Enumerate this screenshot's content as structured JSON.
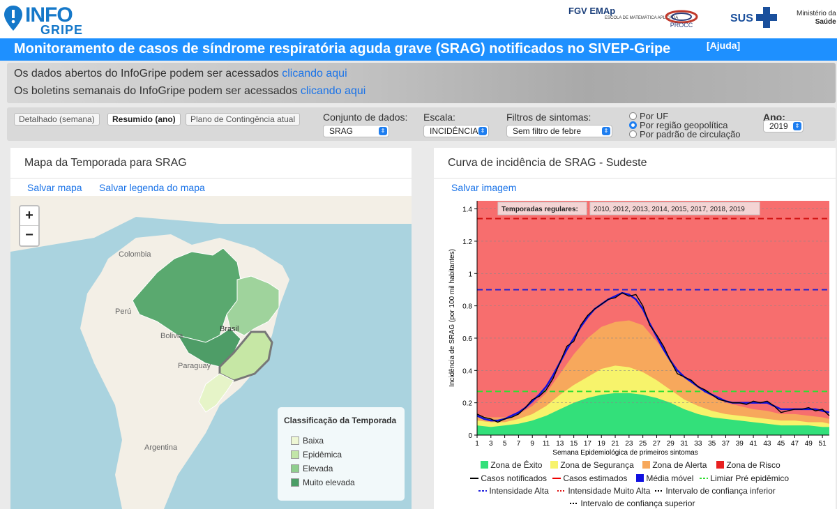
{
  "header": {
    "logo_line1": "INFO",
    "logo_line2": "GRIPE",
    "fgv_label": "FGV EMAp",
    "fgv_sub": "ESCOLA DE MATEMÁTICA APLICADA",
    "procc_label": "PROCC",
    "sus_label": "SUS",
    "ministry_line1": "Ministério da",
    "ministry_line2": "Saúde"
  },
  "title": {
    "text": "Monitoramento de casos de síndrome respiratória aguda grave (SRAG) notificados no SIVEP-Gripe",
    "help_link": "[Ajuda]"
  },
  "info": {
    "line1_prefix": "Os dados abertos do InfoGripe podem ser acessados ",
    "line1_link": "clicando aqui",
    "line2_prefix": "Os boletins semanais do InfoGripe podem ser acessados ",
    "line2_link": "clicando aqui"
  },
  "controls": {
    "tabs": [
      "Detalhado (semana)",
      "Resumido (ano)",
      "Plano de Contingência atual"
    ],
    "dataset_label": "Conjunto de dados:",
    "dataset_value": "SRAG",
    "scale_label": "Escala:",
    "scale_value": "INCIDÊNCIA",
    "filter_label": "Filtros de sintomas:",
    "filter_value": "Sem filtro de febre",
    "radio_options": [
      "Por UF",
      "Por região geopolítica",
      "Por padrão de circulação"
    ],
    "radio_selected": 1,
    "year_label": "Ano:",
    "year_value": "2019"
  },
  "map_panel": {
    "title": "Mapa da Temporada para SRAG",
    "save_map": "Salvar mapa",
    "save_legend": "Salvar legenda do mapa",
    "zoom_in": "+",
    "zoom_out": "−",
    "labels": [
      "Colombia",
      "Perú",
      "Bolivia",
      "Paraguay",
      "Argentina",
      "Brasil"
    ],
    "legend_title": "Classificação da Temporada",
    "legend_items": [
      {
        "label": "Baixa",
        "color": "#eef7d4"
      },
      {
        "label": "Epidêmica",
        "color": "#c2e6a8"
      },
      {
        "label": "Elevada",
        "color": "#8fce8e"
      },
      {
        "label": "Muito elevada",
        "color": "#4a9e66"
      }
    ]
  },
  "chart_panel": {
    "title": "Curva de incidência de SRAG - Sudeste",
    "save_image": "Salvar imagem",
    "legend": {
      "zone_exito": "Zona de Êxito",
      "zone_seguranca": "Zona de Segurança",
      "zone_alerta": "Zona de Alerta",
      "zone_risco": "Zona de Risco",
      "casos_notificados": "Casos notificados",
      "casos_estimados": "Casos estimados",
      "media_movel": "Média móvel",
      "limiar": "Limiar Pré epidêmico",
      "intensidade_alta": "Intensidade Alta",
      "intensidade_muito_alta": "Intensidade Muito Alta",
      "ic_inferior": "Intervalo de confiança inferior",
      "ic_superior": "Intervalo de confiança superior"
    },
    "colors": {
      "exito": "#33e07a",
      "seguranca": "#f7f36b",
      "alerta": "#f7a85c",
      "risco": "#f76e6e",
      "notificados": "#000000",
      "estimados": "#e00000",
      "media": "#1010e0",
      "limiar": "#33dd33",
      "int_alta": "#2020d0",
      "int_muito_alta": "#d01010"
    }
  },
  "chart_data": {
    "type": "area",
    "title": "",
    "xlabel": "Semana Epidemiológica de primeiros sintomas",
    "ylabel": "Incidência de SRAG (por 100 mil habitantes)",
    "xlim": [
      1,
      52
    ],
    "ylim": [
      0,
      1.45
    ],
    "xticks": [
      1,
      3,
      5,
      7,
      9,
      11,
      13,
      15,
      17,
      19,
      21,
      23,
      25,
      27,
      29,
      31,
      33,
      35,
      37,
      39,
      41,
      43,
      45,
      47,
      49,
      51
    ],
    "yticks": [
      0,
      0.2,
      0.4,
      0.6,
      0.8,
      1,
      1.2,
      1.4
    ],
    "annotation_label": "Temporadas regulares:",
    "annotation_value": "2010, 2012, 2013, 2014, 2015, 2017, 2018, 2019",
    "thresholds": {
      "limiar_pre_epidemico": 0.27,
      "intensidade_alta": 0.9,
      "intensidade_muito_alta": 1.34
    },
    "zones_upper": {
      "weeks": [
        1,
        3,
        5,
        7,
        9,
        11,
        13,
        15,
        17,
        19,
        21,
        23,
        25,
        27,
        29,
        31,
        33,
        35,
        37,
        39,
        41,
        43,
        45,
        47,
        49,
        51,
        52
      ],
      "exito": [
        0.06,
        0.05,
        0.06,
        0.07,
        0.09,
        0.12,
        0.16,
        0.2,
        0.23,
        0.25,
        0.26,
        0.26,
        0.25,
        0.23,
        0.2,
        0.16,
        0.13,
        0.11,
        0.1,
        0.09,
        0.08,
        0.07,
        0.06,
        0.06,
        0.06,
        0.05,
        0.05
      ],
      "seguranca": [
        0.09,
        0.08,
        0.08,
        0.1,
        0.13,
        0.18,
        0.25,
        0.31,
        0.36,
        0.41,
        0.43,
        0.42,
        0.39,
        0.34,
        0.28,
        0.22,
        0.18,
        0.15,
        0.13,
        0.12,
        0.11,
        0.1,
        0.09,
        0.09,
        0.08,
        0.08,
        0.07
      ],
      "alerta": [
        0.12,
        0.11,
        0.11,
        0.13,
        0.18,
        0.26,
        0.38,
        0.5,
        0.6,
        0.67,
        0.7,
        0.71,
        0.68,
        0.58,
        0.46,
        0.36,
        0.29,
        0.24,
        0.2,
        0.18,
        0.16,
        0.15,
        0.13,
        0.13,
        0.12,
        0.11,
        0.1
      ]
    },
    "series": [
      {
        "name": "Casos notificados",
        "weeks": [
          1,
          2,
          3,
          4,
          5,
          6,
          7,
          8,
          9,
          10,
          11,
          12,
          13,
          14,
          15,
          16,
          17,
          18,
          19,
          20,
          21,
          22,
          23,
          24,
          25,
          26,
          27,
          28,
          29,
          30,
          31,
          32,
          33,
          34,
          35,
          36,
          37,
          38,
          39,
          40,
          41,
          42,
          43,
          44,
          45,
          46,
          47,
          48,
          49,
          50,
          51,
          52
        ],
        "values": [
          0.13,
          0.11,
          0.1,
          0.08,
          0.1,
          0.11,
          0.13,
          0.17,
          0.22,
          0.24,
          0.28,
          0.35,
          0.45,
          0.55,
          0.58,
          0.68,
          0.74,
          0.78,
          0.81,
          0.84,
          0.85,
          0.88,
          0.86,
          0.87,
          0.8,
          0.68,
          0.62,
          0.55,
          0.46,
          0.38,
          0.36,
          0.34,
          0.3,
          0.28,
          0.25,
          0.22,
          0.21,
          0.2,
          0.2,
          0.19,
          0.21,
          0.2,
          0.21,
          0.18,
          0.14,
          0.15,
          0.16,
          0.16,
          0.17,
          0.15,
          0.16,
          0.12
        ]
      },
      {
        "name": "Média móvel",
        "weeks": [
          1,
          2,
          3,
          4,
          5,
          6,
          7,
          8,
          9,
          10,
          11,
          12,
          13,
          14,
          15,
          16,
          17,
          18,
          19,
          20,
          21,
          22,
          23,
          24,
          25,
          26,
          27,
          28,
          29,
          30,
          31,
          32,
          33,
          34,
          35,
          36,
          37,
          38,
          39,
          40,
          41,
          42,
          43,
          44,
          45,
          46,
          47,
          48,
          49,
          50,
          51,
          52
        ],
        "values": [
          0.12,
          0.1,
          0.09,
          0.09,
          0.1,
          0.12,
          0.14,
          0.17,
          0.21,
          0.25,
          0.3,
          0.37,
          0.45,
          0.53,
          0.6,
          0.67,
          0.73,
          0.78,
          0.81,
          0.84,
          0.86,
          0.88,
          0.87,
          0.84,
          0.78,
          0.69,
          0.61,
          0.53,
          0.46,
          0.4,
          0.36,
          0.33,
          0.3,
          0.27,
          0.25,
          0.23,
          0.21,
          0.2,
          0.2,
          0.2,
          0.2,
          0.2,
          0.2,
          0.18,
          0.16,
          0.16,
          0.16,
          0.16,
          0.16,
          0.16,
          0.15,
          0.14
        ]
      }
    ]
  }
}
